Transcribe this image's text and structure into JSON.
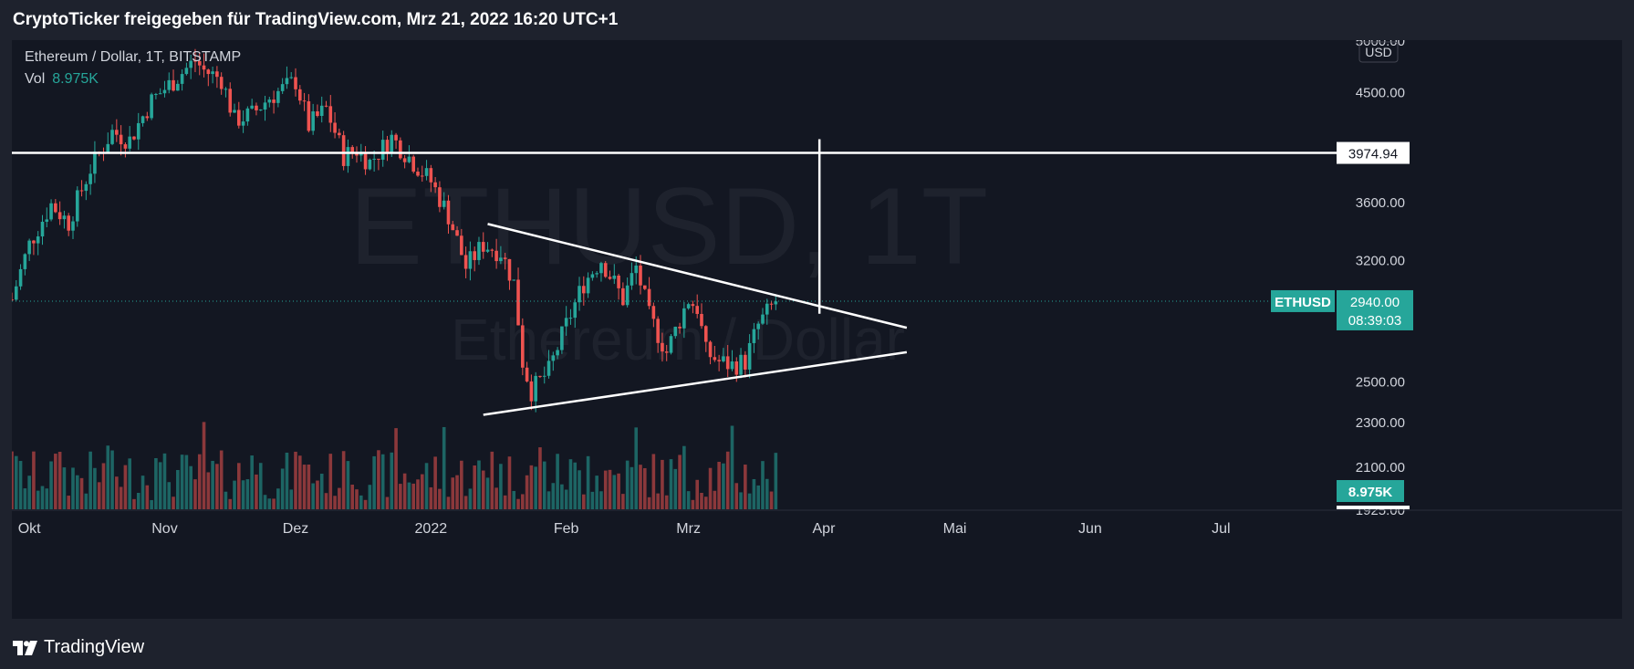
{
  "header": {
    "text": "CryptoTicker freigegeben für TradingView.com, Mrz 21, 2022 16:20 UTC+1"
  },
  "legend": {
    "symbol": "Ethereum / Dollar, 1T, BITSTAMP",
    "vol_label": "Vol",
    "vol_value": "8.975K"
  },
  "watermark": {
    "ticker": "ETHUSD, 1T",
    "name": "Ethereum / Dollar"
  },
  "footer": {
    "brand": "TradingView"
  },
  "colors": {
    "up": "#26a69a",
    "down": "#ef5350",
    "background": "#131722",
    "frame": "#1e222d",
    "lines": "#ffffff"
  },
  "chart_data": {
    "type": "candlestick",
    "symbol": "ETHUSD",
    "interval": "1T",
    "exchange": "BITSTAMP",
    "currency": "USD",
    "y_scale": "log",
    "ylim": [
      1925,
      5000
    ],
    "y_ticks": [
      1925,
      2100,
      2300,
      2500,
      3200,
      3600,
      4500,
      5000
    ],
    "y_tick_labels": [
      "1925.00",
      "2100.00",
      "2300.00",
      "2500.00",
      "3200.00",
      "3600.00",
      "4500.00",
      "5000.00"
    ],
    "x_range": [
      "2021-09-27",
      "2022-07-26"
    ],
    "x_ticks": [
      {
        "date": "2021-10-01",
        "label": "Okt"
      },
      {
        "date": "2021-11-01",
        "label": "Nov"
      },
      {
        "date": "2021-12-01",
        "label": "Dez"
      },
      {
        "date": "2022-01-01",
        "label": "2022"
      },
      {
        "date": "2022-02-01",
        "label": "Feb"
      },
      {
        "date": "2022-03-01",
        "label": "Mrz"
      },
      {
        "date": "2022-04-01",
        "label": "Apr"
      },
      {
        "date": "2022-05-01",
        "label": "Mai"
      },
      {
        "date": "2022-06-01",
        "label": "Jun"
      },
      {
        "date": "2022-07-01",
        "label": "Jul"
      }
    ],
    "close_path": [
      {
        "date": "2021-09-27",
        "close": 2950
      },
      {
        "date": "2021-10-01",
        "close": 3300
      },
      {
        "date": "2021-10-06",
        "close": 3580
      },
      {
        "date": "2021-10-10",
        "close": 3450
      },
      {
        "date": "2021-10-15",
        "close": 3850
      },
      {
        "date": "2021-10-20",
        "close": 4150
      },
      {
        "date": "2021-10-24",
        "close": 4080
      },
      {
        "date": "2021-10-29",
        "close": 4420
      },
      {
        "date": "2021-11-03",
        "close": 4600
      },
      {
        "date": "2021-11-08",
        "close": 4800
      },
      {
        "date": "2021-11-10",
        "close": 4700
      },
      {
        "date": "2021-11-14",
        "close": 4620
      },
      {
        "date": "2021-11-17",
        "close": 4250
      },
      {
        "date": "2021-11-21",
        "close": 4300
      },
      {
        "date": "2021-11-25",
        "close": 4450
      },
      {
        "date": "2021-11-29",
        "close": 4550
      },
      {
        "date": "2021-12-01",
        "close": 4600
      },
      {
        "date": "2021-12-04",
        "close": 4200
      },
      {
        "date": "2021-12-08",
        "close": 4350
      },
      {
        "date": "2021-12-12",
        "close": 3950
      },
      {
        "date": "2021-12-15",
        "close": 4000
      },
      {
        "date": "2021-12-18",
        "close": 3900
      },
      {
        "date": "2021-12-23",
        "close": 4100
      },
      {
        "date": "2021-12-28",
        "close": 3900
      },
      {
        "date": "2022-01-01",
        "close": 3750
      },
      {
        "date": "2022-01-05",
        "close": 3500
      },
      {
        "date": "2022-01-09",
        "close": 3150
      },
      {
        "date": "2022-01-13",
        "close": 3300
      },
      {
        "date": "2022-01-17",
        "close": 3250
      },
      {
        "date": "2022-01-20",
        "close": 3050
      },
      {
        "date": "2022-01-22",
        "close": 2600
      },
      {
        "date": "2022-01-24",
        "close": 2450
      },
      {
        "date": "2022-01-28",
        "close": 2550
      },
      {
        "date": "2022-02-01",
        "close": 2800
      },
      {
        "date": "2022-02-05",
        "close": 3050
      },
      {
        "date": "2022-02-09",
        "close": 3200
      },
      {
        "date": "2022-02-11",
        "close": 3100
      },
      {
        "date": "2022-02-14",
        "close": 2950
      },
      {
        "date": "2022-02-17",
        "close": 3150
      },
      {
        "date": "2022-02-20",
        "close": 2850
      },
      {
        "date": "2022-02-24",
        "close": 2650
      },
      {
        "date": "2022-03-01",
        "close": 2950
      },
      {
        "date": "2022-03-03",
        "close": 2900
      },
      {
        "date": "2022-03-05",
        "close": 2650
      },
      {
        "date": "2022-03-08",
        "close": 2600
      },
      {
        "date": "2022-03-11",
        "close": 2580
      },
      {
        "date": "2022-03-14",
        "close": 2600
      },
      {
        "date": "2022-03-17",
        "close": 2800
      },
      {
        "date": "2022-03-21",
        "close": 2940
      }
    ],
    "current": {
      "label": "ETHUSD",
      "price": "2940.00",
      "countdown": "08:39:03"
    },
    "volume_label": "8.975K",
    "horizontal_level": {
      "value": 3974.94,
      "label": "3974.94"
    },
    "trendlines": [
      {
        "name": "upper",
        "from": {
          "date": "2022-01-14",
          "price": 3440
        },
        "to": {
          "date": "2022-04-20",
          "price": 2785
        }
      },
      {
        "name": "lower",
        "from": {
          "date": "2022-01-13",
          "price": 2333
        },
        "to": {
          "date": "2022-04-20",
          "price": 2650
        }
      }
    ],
    "vertical_measure": {
      "date": "2022-03-31",
      "from_price": 3975,
      "to_price": 2887
    }
  }
}
